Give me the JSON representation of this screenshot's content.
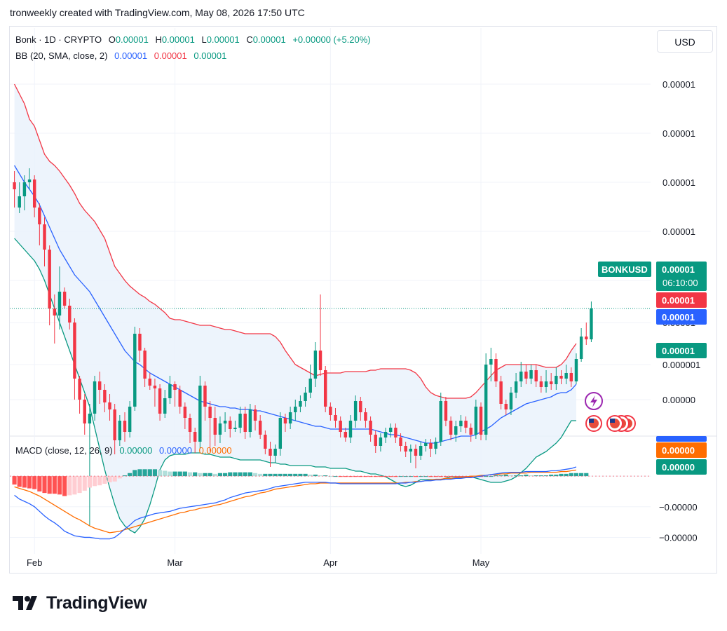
{
  "header_text": "tronweekly created with TradingView.com, May 08, 2026 17:50 UTC",
  "currency_button": "USD",
  "logo_text": "TradingView",
  "colors": {
    "up": "#089981",
    "down": "#f23645",
    "basis": "#2962ff",
    "upper": "#f23645",
    "lower": "#089981",
    "macd": "#2962ff",
    "signal": "#ff6d00",
    "fill": "#e8f1fb"
  },
  "legend": {
    "symbol": "Bonk · 1D · CRYPTO",
    "o_label": "O",
    "o_value": "0.00001",
    "h_label": "H",
    "h_value": "0.00001",
    "l_label": "L",
    "l_value": "0.00001",
    "c_label": "C",
    "c_value": "0.00001",
    "change": "+0.00000 (+5.20%)",
    "bb_label": "BB (20, SMA, close, 2)",
    "bb_basis": "0.00001",
    "bb_upper": "0.00001",
    "bb_lower": "0.00001",
    "macd_label": "MACD (close, 12, 26, 9)",
    "macd_hist": "0.00000",
    "macd_line": "0.00000",
    "macd_signal": "0.00000"
  },
  "price_tags": {
    "symbol_tag": "BONKUSD",
    "last_price": "0.00001",
    "countdown": "06:10:00",
    "upper_band": "0.00001",
    "basis": "0.00001",
    "lower_band": "0.00001",
    "macd_signal": "0.00000",
    "macd_hist": "0.00000",
    "macd_line_partial": "0.00000"
  },
  "chart_data": {
    "type": "candlestick",
    "title": "Bonk · 1D · CRYPTO",
    "x_tick_labels": [
      "Feb",
      "Mar",
      "Apr",
      "May"
    ],
    "price_axis_labels": [
      "0.00001",
      "0.00001",
      "0.00001",
      "0.00001",
      "0.00001",
      "0.00001",
      "0.000001",
      "0.00000"
    ],
    "price_axis_levels": [
      100,
      65,
      30,
      -5,
      -40,
      -70,
      -100,
      -125
    ],
    "price_range": [
      -145,
      135
    ],
    "macd_axis_labels": [
      "0.00000",
      "−0.00000",
      "−0.00000"
    ],
    "macd_axis_levels": [
      0,
      -40,
      -80
    ],
    "macd_range": [
      -97,
      45
    ],
    "note_levels": "price values are relative index units (axis labels print only 0.00001)",
    "candles": [
      [
        30,
        25,
        38,
        12
      ],
      [
        12,
        20,
        30,
        8
      ],
      [
        20,
        30,
        35,
        10
      ],
      [
        30,
        32,
        40,
        25
      ],
      [
        32,
        12,
        35,
        5
      ],
      [
        12,
        0,
        15,
        -15
      ],
      [
        0,
        -18,
        5,
        -30
      ],
      [
        -18,
        -60,
        -15,
        -72
      ],
      [
        -60,
        -65,
        -50,
        -85
      ],
      [
        -65,
        -48,
        -30,
        -75
      ],
      [
        -48,
        -58,
        -45,
        -60
      ],
      [
        -58,
        -70,
        -53,
        -75
      ],
      [
        -70,
        -110,
        -67,
        -125
      ],
      [
        -110,
        -125,
        -108,
        -135
      ],
      [
        -125,
        -142,
        -121,
        -150
      ],
      [
        -142,
        -135,
        -128,
        -215
      ],
      [
        -135,
        -112,
        -108,
        -140
      ],
      [
        -112,
        -118,
        -105,
        -128
      ],
      [
        -118,
        -127,
        -114,
        -134
      ],
      [
        -127,
        -132,
        -121,
        -140
      ],
      [
        -132,
        -154,
        -128,
        -164
      ],
      [
        -154,
        -140,
        -136,
        -158
      ],
      [
        -140,
        -148,
        -134,
        -155
      ],
      [
        -148,
        -130,
        -126,
        -152
      ],
      [
        -130,
        -78,
        -73,
        -133
      ],
      [
        -78,
        -90,
        -74,
        -98
      ],
      [
        -90,
        -110,
        -88,
        -116
      ],
      [
        -110,
        -115,
        -106,
        -118
      ],
      [
        -115,
        -117,
        -110,
        -130
      ],
      [
        -117,
        -135,
        -114,
        -140
      ],
      [
        -135,
        -124,
        -118,
        -138
      ],
      [
        -124,
        -114,
        -108,
        -128
      ],
      [
        -114,
        -118,
        -112,
        -130
      ],
      [
        -118,
        -130,
        -115,
        -135
      ],
      [
        -130,
        -138,
        -127,
        -146
      ],
      [
        -138,
        -148,
        -135,
        -156
      ],
      [
        -148,
        -155,
        -145,
        -163
      ],
      [
        -155,
        -115,
        -108,
        -160
      ],
      [
        -115,
        -130,
        -112,
        -140
      ],
      [
        -130,
        -138,
        -126,
        -162
      ],
      [
        -138,
        -150,
        -130,
        -158
      ],
      [
        -150,
        -142,
        -137,
        -156
      ],
      [
        -142,
        -140,
        -134,
        -148
      ],
      [
        -140,
        -146,
        -137,
        -152
      ],
      [
        -146,
        -145,
        -140,
        -148
      ],
      [
        -145,
        -135,
        -130,
        -149
      ],
      [
        -135,
        -148,
        -130,
        -153
      ],
      [
        -148,
        -132,
        -128,
        -152
      ],
      [
        -132,
        -140,
        -129,
        -147
      ],
      [
        -140,
        -150,
        -136,
        -153
      ],
      [
        -150,
        -160,
        -147,
        -164
      ],
      [
        -160,
        -165,
        -155,
        -173
      ],
      [
        -165,
        -160,
        -157,
        -170
      ],
      [
        -160,
        -138,
        -134,
        -165
      ],
      [
        -138,
        -142,
        -135,
        -148
      ],
      [
        -142,
        -134,
        -130,
        -146
      ],
      [
        -134,
        -130,
        -125,
        -140
      ],
      [
        -130,
        -126,
        -122,
        -134
      ],
      [
        -126,
        -120,
        -116,
        -130
      ],
      [
        -120,
        -110,
        -100,
        -124
      ],
      [
        -110,
        -90,
        -84,
        -116
      ],
      [
        -90,
        -104,
        -50,
        -108
      ],
      [
        -104,
        -130,
        -101,
        -134
      ],
      [
        -130,
        -136,
        -127,
        -140
      ],
      [
        -136,
        -140,
        -131,
        -145
      ],
      [
        -140,
        -148,
        -137,
        -152
      ],
      [
        -148,
        -152,
        -145,
        -155
      ],
      [
        -152,
        -140,
        -136,
        -156
      ],
      [
        -140,
        -126,
        -122,
        -145
      ],
      [
        -126,
        -134,
        -123,
        -140
      ],
      [
        -134,
        -140,
        -131,
        -145
      ],
      [
        -140,
        -150,
        -137,
        -155
      ],
      [
        -150,
        -158,
        -147,
        -163
      ],
      [
        -158,
        -152,
        -149,
        -162
      ],
      [
        -152,
        -148,
        -145,
        -156
      ],
      [
        -148,
        -145,
        -142,
        -152
      ],
      [
        -145,
        -152,
        -142,
        -156
      ],
      [
        -152,
        -158,
        -149,
        -162
      ],
      [
        -158,
        -162,
        -155,
        -166
      ],
      [
        -162,
        -160,
        -157,
        -170
      ],
      [
        -160,
        -165,
        -157,
        -174
      ],
      [
        -165,
        -158,
        -155,
        -168
      ],
      [
        -158,
        -156,
        -153,
        -162
      ],
      [
        -156,
        -160,
        -153,
        -166
      ],
      [
        -160,
        -155,
        -152,
        -164
      ],
      [
        -155,
        -126,
        -120,
        -158
      ],
      [
        -126,
        -140,
        -123,
        -144
      ],
      [
        -140,
        -150,
        -137,
        -154
      ],
      [
        -150,
        -144,
        -140,
        -155
      ],
      [
        -144,
        -140,
        -136,
        -148
      ],
      [
        -140,
        -145,
        -137,
        -149
      ],
      [
        -145,
        -150,
        -142,
        -155
      ],
      [
        -150,
        -130,
        -125,
        -153
      ],
      [
        -130,
        -150,
        -127,
        -154
      ],
      [
        -150,
        -100,
        -92,
        -154
      ],
      [
        -100,
        -96,
        -88,
        -112
      ],
      [
        -96,
        -112,
        -92,
        -116
      ],
      [
        -112,
        -128,
        -108,
        -132
      ],
      [
        -128,
        -132,
        -125,
        -136
      ],
      [
        -132,
        -120,
        -116,
        -136
      ],
      [
        -120,
        -112,
        -106,
        -124
      ],
      [
        -112,
        -105,
        -98,
        -116
      ],
      [
        -105,
        -110,
        -100,
        -114
      ],
      [
        -110,
        -104,
        -100,
        -114
      ],
      [
        -104,
        -112,
        -100,
        -116
      ],
      [
        -112,
        -116,
        -108,
        -120
      ],
      [
        -116,
        -112,
        -104,
        -120
      ],
      [
        -112,
        -114,
        -106,
        -118
      ],
      [
        -114,
        -108,
        -102,
        -118
      ],
      [
        -108,
        -110,
        -104,
        -114
      ],
      [
        -110,
        -106,
        -100,
        -114
      ],
      [
        -106,
        -112,
        -102,
        -116
      ],
      [
        -112,
        -96,
        -92,
        -114
      ],
      [
        -96,
        -80,
        -74,
        -98
      ],
      [
        -80,
        -82,
        -70,
        -86
      ],
      [
        -82,
        -60,
        -55,
        -84
      ]
    ],
    "bollinger": {
      "upper": [
        100,
        93,
        86,
        75,
        70,
        60,
        50,
        45,
        42,
        38,
        33,
        28,
        22,
        15,
        10,
        6,
        2,
        -4,
        -10,
        -20,
        -30,
        -35,
        -40,
        -44,
        -47,
        -50,
        -52,
        -55,
        -57,
        -60,
        -63,
        -67,
        -68,
        -68,
        -69,
        -70,
        -71,
        -72,
        -72,
        -72,
        -73,
        -74,
        -75,
        -75,
        -76,
        -77,
        -78,
        -78,
        -78,
        -78,
        -78,
        -78,
        -80,
        -84,
        -90,
        -95,
        -100,
        -102,
        -104,
        -106,
        -108,
        -107,
        -106,
        -106,
        -106,
        -106,
        -105,
        -105,
        -105,
        -105,
        -105,
        -104,
        -104,
        -103,
        -103,
        -103,
        -103,
        -103,
        -103,
        -104,
        -106,
        -110,
        -116,
        -120,
        -122,
        -123,
        -124,
        -124,
        -124,
        -124,
        -124,
        -123,
        -120,
        -116,
        -112,
        -108,
        -104,
        -102,
        -100,
        -100,
        -100,
        -100,
        -100,
        -100,
        -100,
        -101,
        -102,
        -102,
        -102,
        -100,
        -96,
        -90,
        -85
      ],
      "basis": [
        42,
        36,
        30,
        25,
        20,
        14,
        6,
        -2,
        -10,
        -18,
        -24,
        -30,
        -36,
        -40,
        -44,
        -48,
        -54,
        -60,
        -66,
        -72,
        -78,
        -84,
        -90,
        -94,
        -98,
        -100,
        -103,
        -106,
        -108,
        -110,
        -112,
        -114,
        -116,
        -118,
        -120,
        -122,
        -124,
        -126,
        -127,
        -128,
        -129,
        -130,
        -130,
        -131,
        -131,
        -132,
        -132,
        -132,
        -133,
        -133,
        -134,
        -135,
        -136,
        -137,
        -138,
        -139,
        -140,
        -141,
        -142,
        -143,
        -144,
        -144,
        -145,
        -146,
        -146,
        -146,
        -146,
        -146,
        -146,
        -146,
        -146,
        -146,
        -147,
        -148,
        -149,
        -150,
        -150,
        -151,
        -152,
        -153,
        -154,
        -155,
        -156,
        -156,
        -156,
        -155,
        -154,
        -153,
        -152,
        -151,
        -151,
        -151,
        -150,
        -148,
        -146,
        -144,
        -141,
        -138,
        -136,
        -134,
        -132,
        -130,
        -128,
        -127,
        -126,
        -125,
        -124,
        -123,
        -121,
        -120,
        -120,
        -118,
        -114
      ],
      "lower": [
        -10,
        -14,
        -18,
        -22,
        -26,
        -32,
        -40,
        -50,
        -60,
        -70,
        -80,
        -90,
        -100,
        -110,
        -120,
        -130,
        -145,
        -160,
        -175,
        -188,
        -200,
        -210,
        -215,
        -218,
        -220,
        -216,
        -210,
        -200,
        -188,
        -175,
        -168,
        -165,
        -164,
        -164,
        -164,
        -163,
        -163,
        -163,
        -164,
        -164,
        -165,
        -166,
        -166,
        -166,
        -167,
        -168,
        -168,
        -168,
        -168,
        -168,
        -169,
        -170,
        -170,
        -171,
        -171,
        -172,
        -172,
        -172,
        -172,
        -172,
        -173,
        -173,
        -173,
        -174,
        -174,
        -174,
        -174,
        -175,
        -176,
        -176,
        -177,
        -178,
        -178,
        -179,
        -180,
        -182,
        -184,
        -186,
        -187,
        -186,
        -184,
        -182,
        -182,
        -182,
        -182,
        -182,
        -181,
        -180,
        -180,
        -180,
        -180,
        -180,
        -181,
        -182,
        -183,
        -184,
        -184,
        -184,
        -183,
        -182,
        -180,
        -177,
        -174,
        -170,
        -166,
        -164,
        -162,
        -159,
        -156,
        -152,
        -146,
        -140,
        -140
      ]
    },
    "macd": {
      "macd_line": [
        -25,
        -30,
        -33,
        -36,
        -40,
        -46,
        -52,
        -57,
        -61,
        -66,
        -72,
        -75,
        -78,
        -79,
        -80,
        -80,
        -81,
        -82,
        -82,
        -82,
        -80,
        -75,
        -69,
        -64,
        -58,
        -55,
        -53,
        -51,
        -49,
        -48,
        -47,
        -46,
        -44,
        -42,
        -41,
        -40,
        -39,
        -38,
        -37,
        -36,
        -35,
        -33,
        -31,
        -28,
        -26,
        -24,
        -22,
        -21,
        -20,
        -19,
        -18,
        -16,
        -14,
        -13,
        -12,
        -11,
        -10,
        -9,
        -8,
        -8,
        -8,
        -8,
        -8,
        -9,
        -9,
        -10,
        -10,
        -10,
        -10,
        -10,
        -10,
        -10,
        -10,
        -10,
        -10,
        -10,
        -10,
        -9,
        -9,
        -8,
        -8,
        -7,
        -6,
        -6,
        -5,
        -5,
        -4,
        -4,
        -3,
        -3,
        -2,
        -2,
        -1,
        0,
        1,
        2,
        3,
        4,
        5,
        5,
        5,
        5,
        6,
        6,
        6,
        6,
        6,
        7,
        7,
        8,
        9,
        10,
        12
      ],
      "signal": [
        -14,
        -16,
        -18,
        -20,
        -23,
        -26,
        -30,
        -34,
        -38,
        -42,
        -46,
        -50,
        -54,
        -57,
        -61,
        -65,
        -68,
        -70,
        -72,
        -74,
        -73,
        -72,
        -70,
        -68,
        -66,
        -64,
        -62,
        -60,
        -58,
        -56,
        -54,
        -52,
        -50,
        -48,
        -47,
        -45,
        -44,
        -42,
        -41,
        -40,
        -38,
        -37,
        -35,
        -33,
        -31,
        -29,
        -27,
        -26,
        -24,
        -22,
        -21,
        -19,
        -17,
        -16,
        -15,
        -14,
        -13,
        -12,
        -11,
        -10,
        -10,
        -9,
        -9,
        -9,
        -9,
        -9,
        -9,
        -9,
        -9,
        -9,
        -9,
        -9,
        -9,
        -9,
        -9,
        -9,
        -9,
        -9,
        -8,
        -8,
        -7,
        -7,
        -6,
        -5,
        -4,
        -4,
        -3,
        -3,
        -2,
        -2,
        -1,
        0,
        0,
        1,
        1,
        2,
        2,
        3,
        3,
        4,
        4,
        4,
        4,
        5,
        5,
        5,
        5,
        5,
        5,
        6,
        6,
        7,
        8
      ],
      "histogram": [
        -11,
        -14,
        -15,
        -16,
        -17,
        -20,
        -22,
        -23,
        -23,
        -24,
        -26,
        -25,
        -24,
        -22,
        -19,
        -15,
        -13,
        -12,
        -10,
        -8,
        -7,
        -3,
        1,
        4,
        8,
        9,
        9,
        9,
        9,
        8,
        7,
        6,
        6,
        6,
        6,
        5,
        5,
        4,
        4,
        4,
        3,
        4,
        4,
        5,
        5,
        5,
        5,
        5,
        4,
        3,
        3,
        3,
        3,
        3,
        3,
        3,
        3,
        3,
        3,
        2,
        2,
        1,
        1,
        0,
        0,
        -1,
        -1,
        -1,
        -1,
        -1,
        -1,
        -1,
        -1,
        -1,
        -1,
        -1,
        -1,
        0,
        0,
        0,
        -1,
        0,
        0,
        -1,
        -1,
        -1,
        -1,
        -1,
        -1,
        -1,
        -1,
        -2,
        -1,
        -1,
        0,
        0,
        1,
        1,
        2,
        1,
        1,
        1,
        2,
        1,
        1,
        1,
        1,
        2,
        2,
        3,
        3,
        4,
        4,
        4,
        4
      ]
    }
  }
}
